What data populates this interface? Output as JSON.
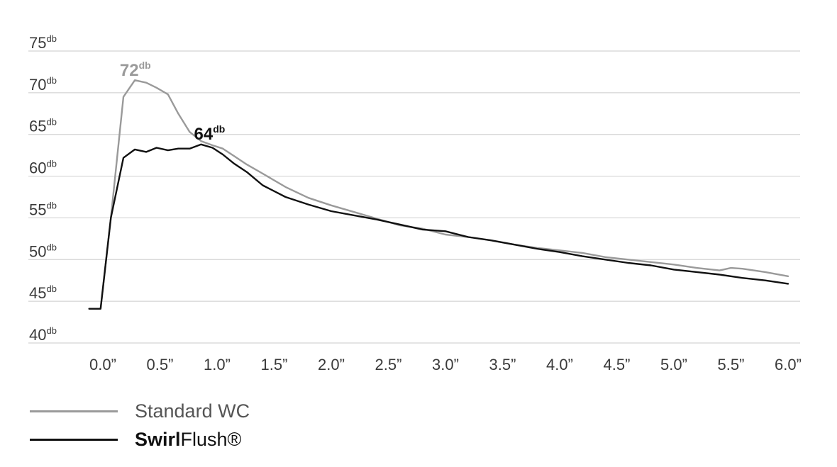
{
  "chart_data": {
    "type": "line",
    "y_unit": "db",
    "ylim": [
      40,
      75
    ],
    "y_ticks": [
      {
        "value": 75,
        "label": "75"
      },
      {
        "value": 70,
        "label": "70"
      },
      {
        "value": 65,
        "label": "65"
      },
      {
        "value": 60,
        "label": "60"
      },
      {
        "value": 55,
        "label": "55"
      },
      {
        "value": 50,
        "label": "50"
      },
      {
        "value": 45,
        "label": "45"
      },
      {
        "value": 40,
        "label": "40"
      }
    ],
    "x_ticks": [
      "0.0”",
      "0.5”",
      "1.0”",
      "1.5”",
      "2.0”",
      "2.5”",
      "3.0”",
      "3.5”",
      "4.0”",
      "4.5”",
      "5.0”",
      "5.5”",
      "6.0”"
    ],
    "xlim": [
      -0.15,
      6.0
    ],
    "grid": true,
    "legend_position": "bottom-left",
    "series": [
      {
        "name": "Standard WC",
        "color": "#9a9a9a",
        "x": [
          -0.12,
          -0.02,
          0.07,
          0.18,
          0.28,
          0.38,
          0.47,
          0.57,
          0.66,
          0.76,
          0.86,
          0.96,
          1.05,
          1.15,
          1.26,
          1.4,
          1.6,
          1.8,
          2.0,
          2.2,
          2.4,
          2.6,
          2.8,
          3.0,
          3.2,
          3.4,
          3.6,
          3.8,
          4.0,
          4.2,
          4.4,
          4.6,
          4.8,
          5.0,
          5.2,
          5.4,
          5.5,
          5.6,
          5.8,
          6.0
        ],
        "y": [
          44.1,
          44.1,
          55.0,
          69.5,
          71.5,
          71.2,
          70.6,
          69.8,
          67.5,
          65.3,
          64.2,
          63.7,
          63.3,
          62.4,
          61.4,
          60.3,
          58.7,
          57.4,
          56.5,
          55.7,
          54.9,
          54.1,
          53.7,
          53.0,
          52.7,
          52.3,
          51.8,
          51.4,
          51.1,
          50.8,
          50.3,
          50.0,
          49.7,
          49.4,
          49.0,
          48.7,
          49.0,
          48.9,
          48.5,
          48.0
        ]
      },
      {
        "name": "SwirlFlush®",
        "color": "#111111",
        "x": [
          -0.12,
          -0.02,
          0.07,
          0.18,
          0.28,
          0.38,
          0.47,
          0.57,
          0.66,
          0.76,
          0.86,
          0.96,
          1.05,
          1.15,
          1.26,
          1.4,
          1.6,
          1.8,
          2.0,
          2.2,
          2.4,
          2.6,
          2.8,
          3.0,
          3.2,
          3.4,
          3.6,
          3.8,
          4.0,
          4.2,
          4.4,
          4.6,
          4.8,
          5.0,
          5.2,
          5.4,
          5.6,
          5.8,
          6.0
        ],
        "y": [
          44.1,
          44.1,
          55.0,
          62.2,
          63.2,
          62.9,
          63.4,
          63.1,
          63.3,
          63.3,
          63.8,
          63.4,
          62.6,
          61.5,
          60.5,
          58.9,
          57.5,
          56.6,
          55.8,
          55.3,
          54.8,
          54.2,
          53.6,
          53.4,
          52.7,
          52.3,
          51.8,
          51.3,
          50.9,
          50.4,
          50.0,
          49.6,
          49.3,
          48.8,
          48.5,
          48.2,
          47.8,
          47.5,
          47.1
        ]
      }
    ],
    "annotations": [
      {
        "text": "72",
        "sup": "db",
        "series": 0,
        "x": 0.31,
        "y": 71.5,
        "color": "#9a9a9a"
      },
      {
        "text": "64",
        "sup": "db",
        "series": 1,
        "x": 0.96,
        "y": 63.8,
        "color": "#111111"
      }
    ]
  },
  "legend": {
    "items": [
      {
        "label": "Standard WC",
        "color": "#9a9a9a"
      },
      {
        "label_bold": "Swirl",
        "label_rest": "Flush®",
        "color": "#111111"
      }
    ]
  }
}
